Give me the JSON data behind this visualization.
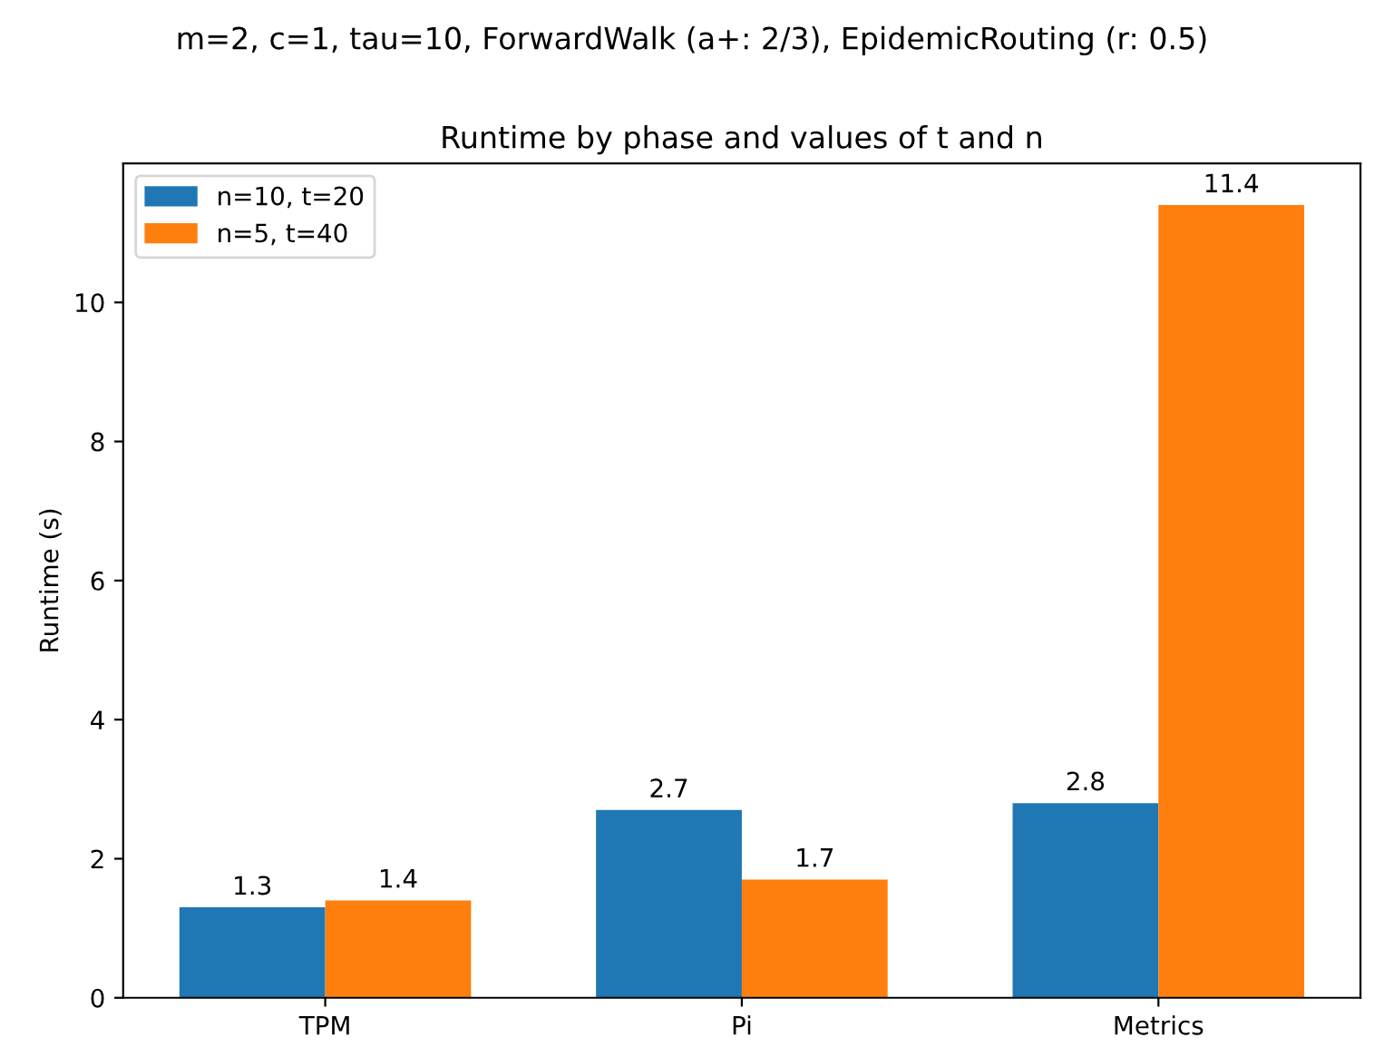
{
  "chart_data": {
    "type": "bar",
    "title": "Runtime by phase and values of t and n",
    "subtitle": "m=2, c=1, tau=10, ForwardWalk (a+: 2/3), EpidemicRouting (r: 0.5)",
    "ylabel": "Runtime (s)",
    "categories": [
      "TPM",
      "Pi",
      "Metrics"
    ],
    "series": [
      {
        "name": "n=10, t=20",
        "color": "#1f77b4",
        "values": [
          1.3,
          2.7,
          2.8
        ]
      },
      {
        "name": "n=5, t=40",
        "color": "#ff7f0e",
        "values": [
          1.4,
          1.7,
          11.4
        ]
      }
    ],
    "ylim": [
      0,
      12
    ],
    "yticks": [
      0,
      2,
      4,
      6,
      8,
      10
    ],
    "data_labels": true,
    "legend": "top left",
    "grid": false
  }
}
